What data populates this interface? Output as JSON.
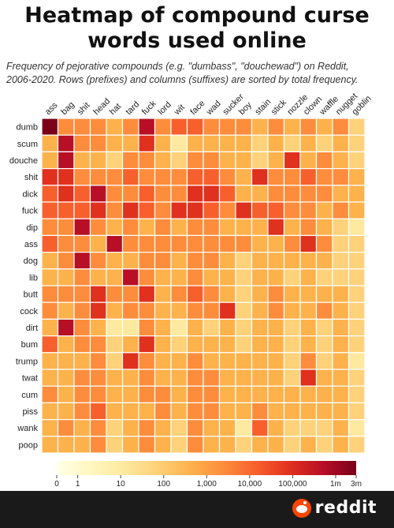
{
  "title_line1": "Heatmap of compound curse",
  "title_line2": "words used online",
  "subtitle_line1": "Frequency of pejorative compounds (e.g. \"dumbass\", \"douchewad\") on Reddit,",
  "subtitle_line2": "2006-2020. Rows (prefixes) and columns (suffixes) are sorted by total frequency.",
  "brand": "reddit",
  "colors": {
    "low": "#fff7c0",
    "high": "#7a0019",
    "footer": "#1a1a1b",
    "brand": "#ff4500"
  },
  "chart_data": {
    "type": "heatmap",
    "title": "Heatmap of compound curse words used online",
    "columns": [
      "ass",
      "bag",
      "shit",
      "head",
      "hat",
      "tard",
      "fuck",
      "lord",
      "wit",
      "face",
      "wad",
      "sucker",
      "boy",
      "stain",
      "stick",
      "nozzle",
      "clown",
      "waffle",
      "nugget",
      "goblin"
    ],
    "rows": [
      "dumb",
      "scum",
      "douche",
      "shit",
      "dick",
      "fuck",
      "dip",
      "ass",
      "dog",
      "lib",
      "butt",
      "cock",
      "dirt",
      "bum",
      "trump",
      "twat",
      "cum",
      "piss",
      "wank",
      "poop"
    ],
    "color_scale": {
      "type": "log",
      "tick_labels": [
        "0",
        "1",
        "10",
        "100",
        "1,000",
        "10,000",
        "100,000",
        "1m",
        "3m"
      ],
      "tick_values": [
        0,
        1,
        10,
        100,
        1000,
        10000,
        100000,
        1000000,
        3000000
      ]
    },
    "level_note": "values are approximate color levels on a 0-9 scale",
    "values": [
      [
        9,
        5,
        5,
        5,
        4,
        5,
        8,
        5,
        6,
        6,
        5,
        5,
        5,
        4,
        5,
        4,
        5,
        4,
        5,
        3
      ],
      [
        4,
        8,
        5,
        5,
        4,
        4,
        7,
        4,
        2,
        4,
        4,
        4,
        4,
        3,
        4,
        3,
        4,
        3,
        4,
        3
      ],
      [
        4,
        8,
        4,
        4,
        3,
        5,
        5,
        4,
        3,
        5,
        5,
        4,
        4,
        3,
        4,
        7,
        4,
        5,
        4,
        3
      ],
      [
        7,
        7,
        5,
        5,
        5,
        6,
        5,
        5,
        5,
        6,
        6,
        5,
        4,
        7,
        5,
        5,
        6,
        5,
        5,
        4
      ],
      [
        6,
        7,
        6,
        8,
        5,
        5,
        6,
        5,
        5,
        7,
        7,
        6,
        4,
        4,
        5,
        5,
        5,
        5,
        4,
        4
      ],
      [
        6,
        6,
        6,
        7,
        5,
        7,
        6,
        5,
        7,
        7,
        6,
        5,
        7,
        6,
        6,
        5,
        5,
        4,
        5,
        4
      ],
      [
        5,
        5,
        8,
        5,
        4,
        5,
        4,
        5,
        4,
        5,
        5,
        4,
        4,
        4,
        7,
        4,
        5,
        4,
        3,
        2
      ],
      [
        6,
        5,
        5,
        4,
        8,
        5,
        5,
        5,
        5,
        5,
        5,
        5,
        5,
        4,
        4,
        5,
        7,
        5,
        3,
        3
      ],
      [
        4,
        5,
        8,
        5,
        4,
        4,
        5,
        5,
        4,
        5,
        5,
        4,
        3,
        4,
        4,
        4,
        4,
        4,
        3,
        3
      ],
      [
        4,
        4,
        5,
        4,
        4,
        8,
        5,
        4,
        4,
        5,
        4,
        4,
        3,
        4,
        4,
        3,
        4,
        3,
        3,
        3
      ],
      [
        5,
        5,
        5,
        7,
        5,
        5,
        7,
        4,
        5,
        6,
        5,
        4,
        3,
        4,
        5,
        4,
        4,
        4,
        4,
        3
      ],
      [
        5,
        4,
        5,
        7,
        4,
        5,
        5,
        4,
        4,
        5,
        5,
        7,
        3,
        4,
        5,
        4,
        4,
        5,
        4,
        3
      ],
      [
        4,
        8,
        5,
        4,
        2,
        2,
        5,
        4,
        2,
        4,
        3,
        4,
        3,
        4,
        4,
        3,
        4,
        3,
        4,
        3
      ],
      [
        6,
        4,
        5,
        5,
        3,
        4,
        7,
        4,
        3,
        4,
        4,
        4,
        3,
        4,
        4,
        3,
        4,
        3,
        4,
        3
      ],
      [
        4,
        4,
        4,
        5,
        3,
        7,
        5,
        4,
        4,
        5,
        4,
        4,
        4,
        4,
        4,
        3,
        5,
        3,
        4,
        2
      ],
      [
        4,
        4,
        5,
        5,
        4,
        4,
        5,
        4,
        4,
        5,
        5,
        4,
        4,
        4,
        4,
        3,
        7,
        4,
        4,
        3
      ],
      [
        5,
        4,
        5,
        5,
        4,
        4,
        5,
        5,
        4,
        5,
        5,
        4,
        4,
        4,
        4,
        4,
        4,
        4,
        4,
        3
      ],
      [
        4,
        4,
        5,
        6,
        4,
        4,
        4,
        5,
        4,
        5,
        5,
        4,
        4,
        5,
        4,
        4,
        4,
        4,
        4,
        3
      ],
      [
        4,
        5,
        4,
        5,
        3,
        4,
        5,
        4,
        3,
        5,
        4,
        4,
        2,
        6,
        4,
        3,
        3,
        3,
        4,
        2
      ],
      [
        4,
        4,
        4,
        5,
        3,
        4,
        5,
        4,
        3,
        5,
        4,
        4,
        3,
        4,
        4,
        3,
        4,
        3,
        4,
        3
      ]
    ]
  }
}
